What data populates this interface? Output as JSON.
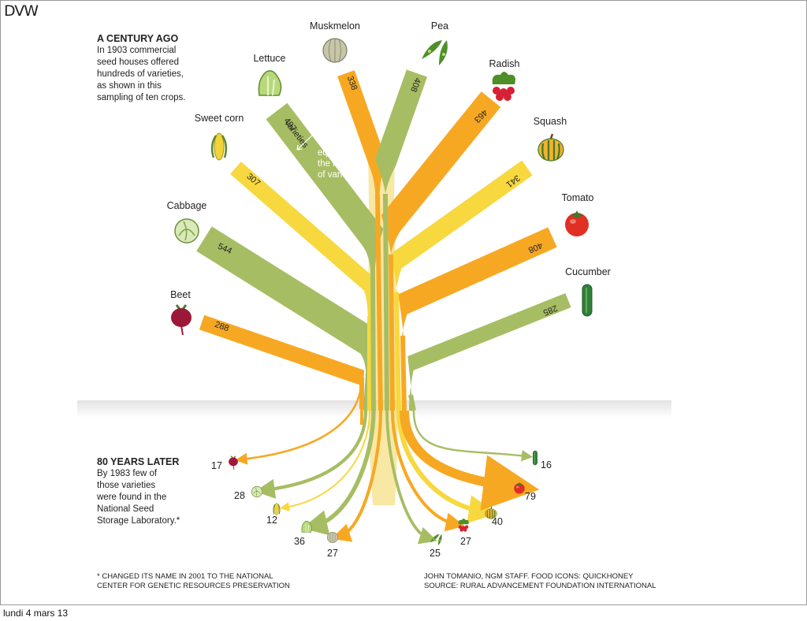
{
  "logo": "DVW",
  "slide_date": "lundi 4 mars 13",
  "intro": {
    "heading": "A CENTURY AGO",
    "lines": [
      "In 1903 commercial",
      "seed houses offered",
      "hundreds of varieties,",
      "as shown in this",
      "sampling of ten crops."
    ]
  },
  "later": {
    "heading": "80 YEARS LATER",
    "lines": [
      "By 1983 few of",
      "those varieties",
      "were found in the",
      "National Seed",
      "Storage Laboratory.*"
    ]
  },
  "width_note": [
    "Width",
    "equals",
    "the number",
    "of varieties"
  ],
  "lettuce_value_suffix": "varieties",
  "footnote_left": [
    "* CHANGED ITS NAME IN 2001 TO THE NATIONAL",
    "CENTER FOR GENETIC RESOURCES PRESERVATION"
  ],
  "footnote_right": [
    "JOHN TOMANIO, NGM STAFF. FOOD ICONS: QUICKHONEY",
    "SOURCE: RURAL ADVANCEMENT FOUNDATION INTERNATIONAL"
  ],
  "colors": {
    "orange": "#f7a823",
    "green": "#a7bd63",
    "yellow": "#f7d83e"
  },
  "chart_data": {
    "type": "bar",
    "categories": [
      "Beet",
      "Cabbage",
      "Sweet corn",
      "Lettuce",
      "Muskmelon",
      "Pea",
      "Radish",
      "Squash",
      "Tomato",
      "Cucumber"
    ],
    "series": [
      {
        "values": [
          288,
          544,
          307,
          497,
          338,
          408,
          463,
          341,
          408,
          285
        ]
      },
      {
        "values": [
          17,
          28,
          12,
          36,
          27,
          25,
          27,
          40,
          79,
          16
        ]
      }
    ]
  }
}
